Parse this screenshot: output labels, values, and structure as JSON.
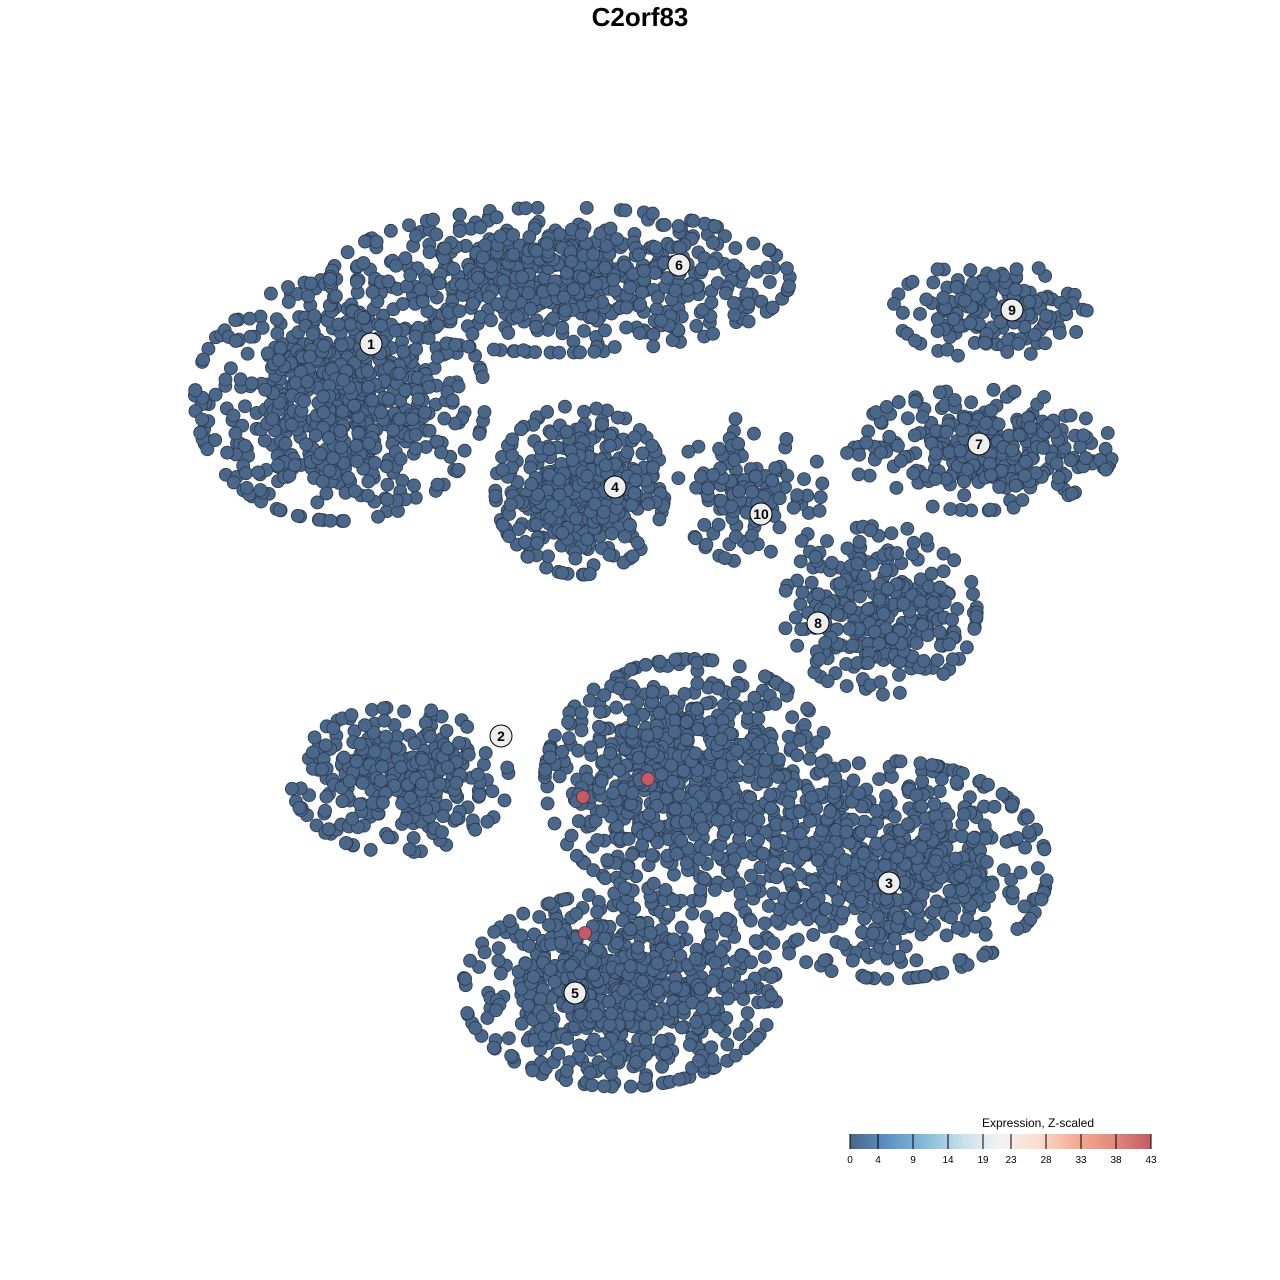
{
  "chart_data": {
    "type": "scatter",
    "title": "C2orf83",
    "xlabel": "",
    "ylabel": "",
    "xlim": [
      -45,
      50
    ],
    "ylim": [
      -46,
      46
    ],
    "grid": false,
    "point_color_default": "#4a6689",
    "point_stroke": "#2b3a4f",
    "clusters": [
      {
        "id": "1",
        "label_xy": [
          -26.9,
          29.6
        ],
        "cloud": {
          "center": [
            -30,
            24
          ],
          "spread": [
            12,
            10
          ],
          "n": 700
        }
      },
      {
        "id": "6",
        "label_xy": [
          3.9,
          37.5
        ],
        "cloud": {
          "center": [
            -8,
            36
          ],
          "spread": [
            19,
            6
          ],
          "n": 650
        }
      },
      {
        "id": "4",
        "label_xy": [
          -2.5,
          15.3
        ],
        "cloud": {
          "center": [
            -6,
            15
          ],
          "spread": [
            7,
            7
          ],
          "n": 420
        }
      },
      {
        "id": "10",
        "label_xy": [
          12.1,
          12.6
        ],
        "cloud": {
          "center": [
            11,
            15
          ],
          "spread": [
            6,
            6
          ],
          "n": 120
        }
      },
      {
        "id": "9",
        "label_xy": [
          37.2,
          33.0
        ],
        "cloud": {
          "center": [
            35,
            33
          ],
          "spread": [
            8,
            4
          ],
          "n": 160
        }
      },
      {
        "id": "7",
        "label_xy": [
          33.9,
          19.6
        ],
        "cloud": {
          "center": [
            34,
            19
          ],
          "spread": [
            11,
            5
          ],
          "n": 300
        }
      },
      {
        "id": "8",
        "label_xy": [
          17.8,
          1.7
        ],
        "cloud": {
          "center": [
            24,
            3
          ],
          "spread": [
            8,
            7
          ],
          "n": 320
        }
      },
      {
        "id": "2",
        "label_xy": [
          -13.9,
          -9.6
        ],
        "cloud": {
          "center": [
            -24,
            -14
          ],
          "spread": [
            9,
            6
          ],
          "n": 330
        }
      },
      {
        "id": "3",
        "label_xy": [
          24.9,
          -24.3
        ],
        "cloud": {
          "center": [
            25,
            -23
          ],
          "spread": [
            13,
            9
          ],
          "n": 650
        }
      },
      {
        "id": "5",
        "label_xy": [
          -6.5,
          -35.3
        ],
        "cloud": {
          "center": [
            -2,
            -35
          ],
          "spread": [
            13,
            8
          ],
          "n": 750
        }
      },
      {
        "id": "",
        "label_xy": null,
        "cloud": {
          "center": [
            5,
            -14
          ],
          "spread": [
            12,
            10
          ],
          "n": 800
        }
      }
    ],
    "highlighted_points": [
      {
        "x": -5.7,
        "y": -15.7,
        "value": 43
      },
      {
        "x": 0.8,
        "y": -13.9,
        "value": 43
      },
      {
        "x": -5.5,
        "y": -29.3,
        "value": 43
      }
    ],
    "legend": {
      "title": "Expression, Z-scaled",
      "placement": "bottom-right",
      "ticks": [
        "0",
        "4",
        "9",
        "14",
        "19",
        "23",
        "28",
        "33",
        "38",
        "43"
      ],
      "range": [
        0,
        43
      ],
      "colors": [
        "#4a6689",
        "#5b92c4",
        "#85bbd8",
        "#c9e0ec",
        "#f3f3f3",
        "#fbdccd",
        "#f2ad93",
        "#e28a7a",
        "#c45a67"
      ]
    }
  }
}
